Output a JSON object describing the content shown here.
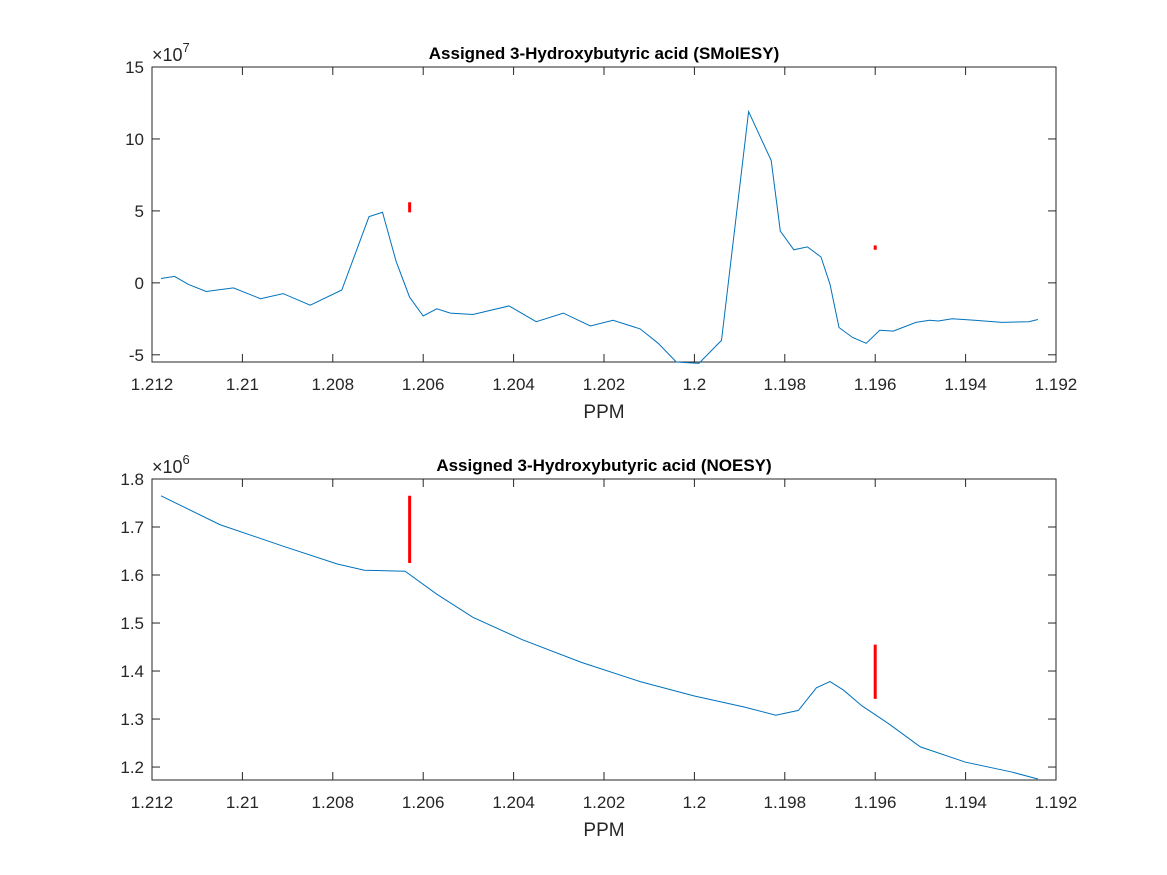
{
  "chart_data": [
    {
      "type": "line",
      "title": "Assigned 3-Hydroxybutyric acid  (SMolESY)",
      "xlabel": "PPM",
      "ylabel": "",
      "x_reversed": true,
      "xlim": [
        1.192,
        1.212
      ],
      "ylim": [
        -5.5,
        15
      ],
      "y_multiplier": "×10",
      "y_multiplier_exp": "7",
      "xticks": [
        1.212,
        1.21,
        1.208,
        1.206,
        1.204,
        1.202,
        1.2,
        1.198,
        1.196,
        1.194,
        1.192
      ],
      "xtick_labels": [
        "1.212",
        "1.21",
        "1.208",
        "1.206",
        "1.204",
        "1.202",
        "1.2",
        "1.198",
        "1.196",
        "1.194",
        "1.192"
      ],
      "yticks": [
        -5,
        0,
        5,
        10,
        15
      ],
      "ytick_labels": [
        "-5",
        "0",
        "5",
        "10",
        "15"
      ],
      "series": [
        {
          "color": "#0072BD",
          "x": [
            1.2118,
            1.2115,
            1.2112,
            1.2108,
            1.2102,
            1.2096,
            1.2091,
            1.2085,
            1.2078,
            1.2072,
            1.2069,
            1.2066,
            1.2063,
            1.206,
            1.2057,
            1.2054,
            1.2049,
            1.2041,
            1.2035,
            1.2029,
            1.2023,
            1.2018,
            1.2012,
            1.2008,
            1.2004,
            1.1999,
            1.1994,
            1.1988,
            1.1983,
            1.1981,
            1.1978,
            1.1975,
            1.1972,
            1.197,
            1.1968,
            1.1965,
            1.1962,
            1.1959,
            1.1956,
            1.1951,
            1.1948,
            1.1946,
            1.1943,
            1.1938,
            1.1932,
            1.1926,
            1.1924
          ],
          "y": [
            0.3,
            0.45,
            -0.1,
            -0.6,
            -0.35,
            -1.1,
            -0.75,
            -1.55,
            -0.5,
            4.6,
            4.9,
            1.5,
            -1.0,
            -2.3,
            -1.8,
            -2.1,
            -2.2,
            -1.6,
            -2.7,
            -2.1,
            -3.0,
            -2.6,
            -3.2,
            -4.2,
            -5.5,
            -5.6,
            -4.0,
            11.9,
            8.5,
            3.6,
            2.3,
            2.5,
            1.8,
            -0.1,
            -3.1,
            -3.8,
            -4.2,
            -3.3,
            -3.35,
            -2.75,
            -2.6,
            -2.65,
            -2.5,
            -2.6,
            -2.75,
            -2.7,
            -2.55
          ]
        }
      ],
      "markers": [
        {
          "x": 1.2063,
          "y_low": 4.9,
          "y_high": 5.6
        },
        {
          "x": 1.196,
          "y_low": 2.3,
          "y_high": 2.6
        }
      ]
    },
    {
      "type": "line",
      "title": "Assigned 3-Hydroxybutyric acid  (NOESY)",
      "xlabel": "PPM",
      "ylabel": "",
      "x_reversed": true,
      "xlim": [
        1.192,
        1.212
      ],
      "ylim": [
        1.173,
        1.8
      ],
      "y_multiplier": "×10",
      "y_multiplier_exp": "6",
      "xticks": [
        1.212,
        1.21,
        1.208,
        1.206,
        1.204,
        1.202,
        1.2,
        1.198,
        1.196,
        1.194,
        1.192
      ],
      "xtick_labels": [
        "1.212",
        "1.21",
        "1.208",
        "1.206",
        "1.204",
        "1.202",
        "1.2",
        "1.198",
        "1.196",
        "1.194",
        "1.192"
      ],
      "yticks": [
        1.2,
        1.3,
        1.4,
        1.5,
        1.6,
        1.7,
        1.8
      ],
      "ytick_labels": [
        "1.2",
        "1.3",
        "1.4",
        "1.5",
        "1.6",
        "1.7",
        "1.8"
      ],
      "series": [
        {
          "color": "#0072BD",
          "x": [
            1.2118,
            1.2105,
            1.2091,
            1.2079,
            1.2073,
            1.2064,
            1.2057,
            1.2049,
            1.2038,
            1.2025,
            1.2012,
            1.2,
            1.1989,
            1.1982,
            1.1977,
            1.1973,
            1.197,
            1.1967,
            1.1963,
            1.1957,
            1.195,
            1.194,
            1.193,
            1.1924
          ],
          "y": [
            1.765,
            1.705,
            1.66,
            1.623,
            1.61,
            1.608,
            1.56,
            1.512,
            1.465,
            1.418,
            1.378,
            1.348,
            1.325,
            1.308,
            1.318,
            1.365,
            1.378,
            1.36,
            1.328,
            1.29,
            1.242,
            1.21,
            1.19,
            1.175
          ]
        }
      ],
      "markers": [
        {
          "x": 1.2063,
          "y_low": 1.625,
          "y_high": 1.765
        },
        {
          "x": 1.196,
          "y_low": 1.342,
          "y_high": 1.455
        }
      ]
    }
  ]
}
